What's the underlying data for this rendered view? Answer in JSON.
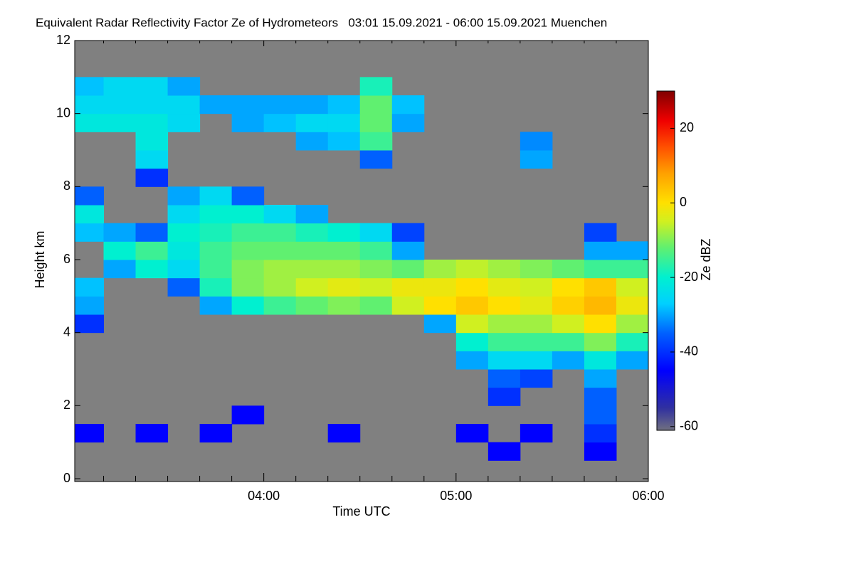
{
  "chart_data": {
    "type": "heatmap",
    "title": "Equivalent Radar Reflectivity Factor Ze of Hydrometeors   03:01 15.09.2021 - 06:00 15.09.2021 Muenchen",
    "xlabel": "Time UTC",
    "ylabel": "Height km",
    "zlabel": "Ze dBZ",
    "background": "#808080",
    "xlim": [
      3.0167,
      6.0
    ],
    "xticks": [
      {
        "value": 4,
        "label": "04:00"
      },
      {
        "value": 5,
        "label": "05:00"
      },
      {
        "value": 6,
        "label": "06:00"
      }
    ],
    "xminorticks": [
      3.1667,
      3.3333,
      3.5,
      3.6667,
      3.8333,
      4.1667,
      4.3333,
      4.5,
      4.6667,
      4.8333,
      5.1667,
      5.3333,
      5.5,
      5.6667,
      5.8333
    ],
    "ylim": [
      0,
      12
    ],
    "yticks": [
      0,
      2,
      4,
      6,
      8,
      10,
      12
    ],
    "zlim": [
      -61,
      30
    ],
    "zticks": [
      -60,
      -40,
      -20,
      0,
      20
    ],
    "colorscale": [
      {
        "value": -61,
        "color": "#707080"
      },
      {
        "value": -55,
        "color": "#3030a0"
      },
      {
        "value": -45,
        "color": "#0000ff"
      },
      {
        "value": -35,
        "color": "#0060ff"
      },
      {
        "value": -27,
        "color": "#00d0ff"
      },
      {
        "value": -20,
        "color": "#00f0d0"
      },
      {
        "value": -12,
        "color": "#60f070"
      },
      {
        "value": -5,
        "color": "#d0f020"
      },
      {
        "value": 0,
        "color": "#ffe000"
      },
      {
        "value": 8,
        "color": "#ffa000"
      },
      {
        "value": 15,
        "color": "#ff5000"
      },
      {
        "value": 22,
        "color": "#f00000"
      },
      {
        "value": 30,
        "color": "#800000"
      }
    ],
    "xbins": [
      3.0,
      3.1667,
      3.3333,
      3.5,
      3.6667,
      3.8333,
      4.0,
      4.1667,
      4.3333,
      4.5,
      4.6667,
      4.8333,
      5.0,
      5.1667,
      5.3333,
      5.5,
      5.6667,
      5.8333,
      6.0
    ],
    "ybins": [
      0,
      0.5,
      1,
      1.5,
      2,
      2.5,
      3,
      3.5,
      4,
      4.5,
      5,
      5.5,
      6,
      6.5,
      7,
      7.5,
      8,
      8.5,
      9,
      9.5,
      10,
      10.5,
      11,
      11.5,
      12
    ],
    "z": [
      [
        null,
        null,
        null,
        null,
        null,
        null,
        null,
        null,
        null,
        null,
        null,
        null,
        null,
        null,
        null,
        null,
        null,
        null
      ],
      [
        null,
        null,
        null,
        null,
        null,
        null,
        null,
        null,
        null,
        null,
        null,
        null,
        null,
        -45,
        null,
        null,
        -45,
        null
      ],
      [
        -45,
        null,
        -45,
        null,
        -45,
        null,
        null,
        null,
        -45,
        null,
        null,
        null,
        -45,
        null,
        -45,
        null,
        -40,
        null
      ],
      [
        null,
        null,
        null,
        null,
        null,
        -45,
        null,
        null,
        null,
        null,
        null,
        null,
        null,
        null,
        null,
        null,
        -35,
        null
      ],
      [
        null,
        null,
        null,
        null,
        null,
        null,
        null,
        null,
        null,
        null,
        null,
        null,
        null,
        -40,
        null,
        null,
        -35,
        null
      ],
      [
        null,
        null,
        null,
        null,
        null,
        null,
        null,
        null,
        null,
        null,
        null,
        null,
        null,
        -35,
        -38,
        null,
        -30,
        null
      ],
      [
        null,
        null,
        null,
        null,
        null,
        null,
        null,
        null,
        null,
        null,
        null,
        null,
        -30,
        -25,
        -25,
        -30,
        -22,
        -30
      ],
      [
        null,
        null,
        null,
        null,
        null,
        null,
        null,
        null,
        null,
        null,
        null,
        null,
        -20,
        -15,
        -15,
        -15,
        -10,
        -18
      ],
      [
        -40,
        null,
        null,
        null,
        null,
        null,
        null,
        null,
        null,
        null,
        null,
        -30,
        -5,
        -8,
        -8,
        -5,
        0,
        -8
      ],
      [
        -30,
        null,
        null,
        null,
        -30,
        -20,
        -15,
        -12,
        -10,
        -12,
        -5,
        0,
        3,
        0,
        -3,
        2,
        5,
        -2
      ],
      [
        -28,
        null,
        null,
        -35,
        -18,
        -10,
        -8,
        -5,
        -3,
        -5,
        -2,
        -2,
        0,
        -3,
        -5,
        0,
        3,
        -5
      ],
      [
        null,
        -30,
        -20,
        -25,
        -15,
        -10,
        -8,
        -8,
        -8,
        -10,
        -12,
        -8,
        -6,
        -8,
        -10,
        -12,
        -15,
        -15
      ],
      [
        null,
        -20,
        -15,
        -22,
        -15,
        -12,
        -12,
        -12,
        -12,
        -15,
        -30,
        null,
        null,
        null,
        null,
        null,
        -30,
        -30
      ],
      [
        -28,
        -30,
        -35,
        -20,
        -18,
        -15,
        -15,
        -18,
        -20,
        -25,
        -38,
        null,
        null,
        null,
        null,
        null,
        -38,
        null
      ],
      [
        -22,
        null,
        null,
        -25,
        -20,
        -20,
        -25,
        -30,
        null,
        null,
        null,
        null,
        null,
        null,
        null,
        null,
        null,
        null
      ],
      [
        -35,
        null,
        null,
        -30,
        -25,
        -35,
        null,
        null,
        null,
        null,
        null,
        null,
        null,
        null,
        null,
        null,
        null,
        null
      ],
      [
        null,
        null,
        -40,
        null,
        null,
        null,
        null,
        null,
        null,
        null,
        null,
        null,
        null,
        null,
        null,
        null,
        null,
        null
      ],
      [
        null,
        null,
        -25,
        null,
        null,
        null,
        null,
        null,
        null,
        -35,
        null,
        null,
        null,
        null,
        -30,
        null,
        null,
        null
      ],
      [
        null,
        null,
        -22,
        null,
        null,
        null,
        null,
        -30,
        -28,
        -15,
        null,
        null,
        null,
        null,
        -32,
        null,
        null,
        null
      ],
      [
        -22,
        -22,
        -22,
        -25,
        null,
        -30,
        -28,
        -25,
        -25,
        -12,
        -30,
        null,
        null,
        null,
        null,
        null,
        null,
        null
      ],
      [
        -25,
        -25,
        -25,
        -25,
        -30,
        -30,
        -30,
        -30,
        -28,
        -12,
        -28,
        null,
        null,
        null,
        null,
        null,
        null,
        null
      ],
      [
        -28,
        -25,
        -25,
        -30,
        null,
        null,
        null,
        null,
        null,
        -18,
        null,
        null,
        null,
        null,
        null,
        null,
        null,
        null
      ],
      [
        null,
        null,
        null,
        null,
        null,
        null,
        null,
        null,
        null,
        null,
        null,
        null,
        null,
        null,
        null,
        null,
        null,
        null
      ],
      [
        null,
        null,
        null,
        null,
        null,
        null,
        null,
        null,
        null,
        null,
        null,
        null,
        null,
        null,
        null,
        null,
        null,
        null
      ]
    ]
  }
}
